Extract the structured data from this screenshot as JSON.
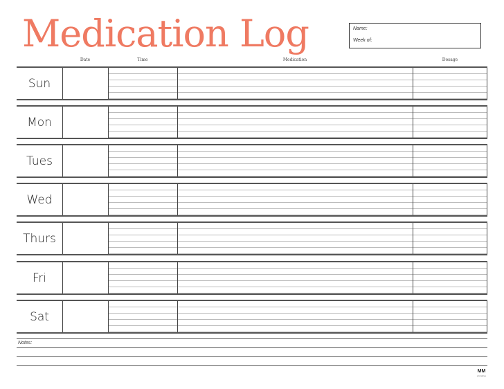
{
  "header": {
    "title": "Medication Log",
    "name_label": "Name:",
    "week_label": "Week of:"
  },
  "columns": {
    "date": "Date",
    "time": "Time",
    "medication": "Medication",
    "dosage": "Dosage"
  },
  "days": [
    "Sun",
    "Mon",
    "Tues",
    "Wed",
    "Thurs",
    "Fri",
    "Sat"
  ],
  "notes": {
    "label": "Notes:"
  },
  "logo": {
    "mark": "MM",
    "text": "printables"
  },
  "colors": {
    "title": "#ef7a62",
    "lines": "#555555"
  }
}
